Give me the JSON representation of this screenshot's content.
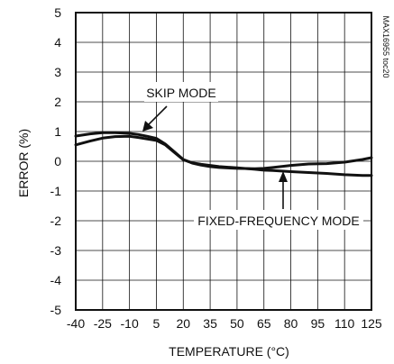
{
  "chart_data": {
    "type": "line",
    "title": "",
    "xlabel": "TEMPERATURE (°C)",
    "ylabel": "ERROR (%)",
    "xlim": [
      -40,
      125
    ],
    "ylim": [
      -5,
      5
    ],
    "x_ticks": [
      -40,
      -25,
      -10,
      5,
      20,
      35,
      50,
      65,
      80,
      95,
      110,
      125
    ],
    "y_ticks": [
      5,
      4,
      3,
      2,
      1,
      0,
      -1,
      -2,
      -3,
      -4,
      -5
    ],
    "grid": true,
    "series": [
      {
        "name": "SKIP MODE",
        "x": [
          -40,
          -32,
          -25,
          -18,
          -10,
          -5,
          0,
          5,
          10,
          15,
          20,
          25,
          30,
          35,
          40,
          50,
          60,
          65,
          70,
          80,
          90,
          100,
          110,
          120,
          125
        ],
        "y": [
          0.55,
          0.68,
          0.78,
          0.83,
          0.84,
          0.8,
          0.75,
          0.7,
          0.55,
          0.3,
          0.05,
          -0.05,
          -0.1,
          -0.14,
          -0.18,
          -0.22,
          -0.27,
          -0.3,
          -0.31,
          -0.35,
          -0.38,
          -0.41,
          -0.45,
          -0.48,
          -0.48
        ]
      },
      {
        "name": "FIXED-FREQUENCY MODE",
        "x": [
          -40,
          -32,
          -25,
          -18,
          -10,
          -5,
          0,
          5,
          10,
          15,
          20,
          25,
          30,
          35,
          40,
          50,
          60,
          65,
          70,
          80,
          90,
          100,
          110,
          120,
          125
        ],
        "y": [
          0.85,
          0.92,
          0.96,
          0.96,
          0.94,
          0.9,
          0.84,
          0.77,
          0.58,
          0.32,
          0.06,
          -0.06,
          -0.13,
          -0.18,
          -0.21,
          -0.24,
          -0.25,
          -0.24,
          -0.21,
          -0.14,
          -0.09,
          -0.08,
          -0.03,
          0.06,
          0.12
        ]
      }
    ],
    "annotations": [
      {
        "text": "SKIP MODE",
        "points_to": "SKIP MODE"
      },
      {
        "text": "FIXED-FREQUENCY MODE",
        "points_to": "FIXED-FREQUENCY MODE"
      }
    ],
    "side_code": "MAX16955 toc20"
  }
}
